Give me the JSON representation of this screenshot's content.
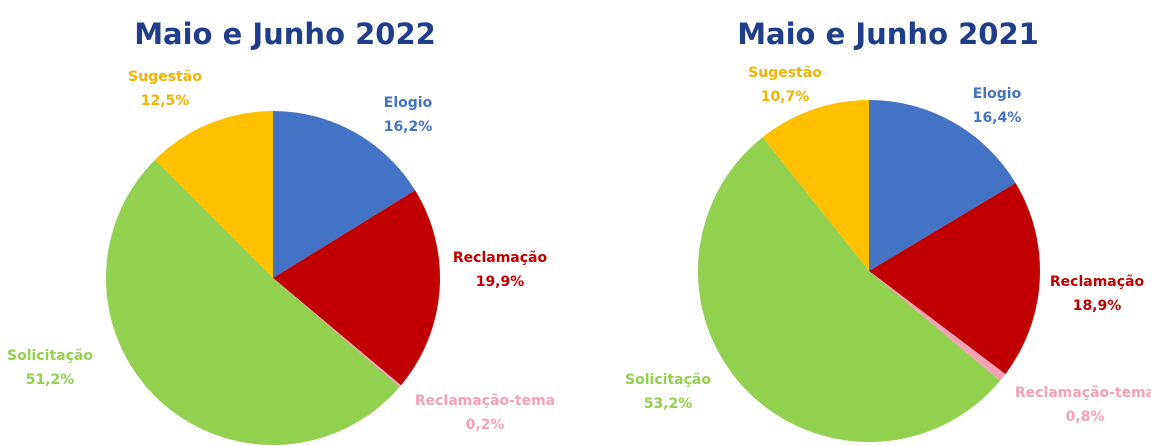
{
  "chart_data": [
    {
      "type": "pie",
      "title": "Maio e Junho 2022",
      "categories": [
        "Elogio",
        "Reclamação",
        "Reclamação-tema",
        "Solicitação",
        "Sugestão"
      ],
      "values": [
        16.2,
        19.9,
        0.2,
        51.2,
        12.5
      ],
      "value_labels": [
        "16,2%",
        "19,9%",
        "0,2%",
        "51,2%",
        "12,5%"
      ],
      "colors": [
        "#4472c4",
        "#c00000",
        "#f7a1b5",
        "#92d050",
        "#ffc000"
      ]
    },
    {
      "type": "pie",
      "title": "Maio e Junho 2021",
      "categories": [
        "Elogio",
        "Reclamação",
        "Reclamação-tema",
        "Solicitação",
        "Sugestão"
      ],
      "values": [
        16.4,
        18.9,
        0.8,
        53.2,
        10.7
      ],
      "value_labels": [
        "16,4%",
        "18,9%",
        "0,8%",
        "53,2%",
        "10,7%"
      ],
      "colors": [
        "#4472c4",
        "#c00000",
        "#f7a1b5",
        "#92d050",
        "#ffc000"
      ]
    }
  ]
}
